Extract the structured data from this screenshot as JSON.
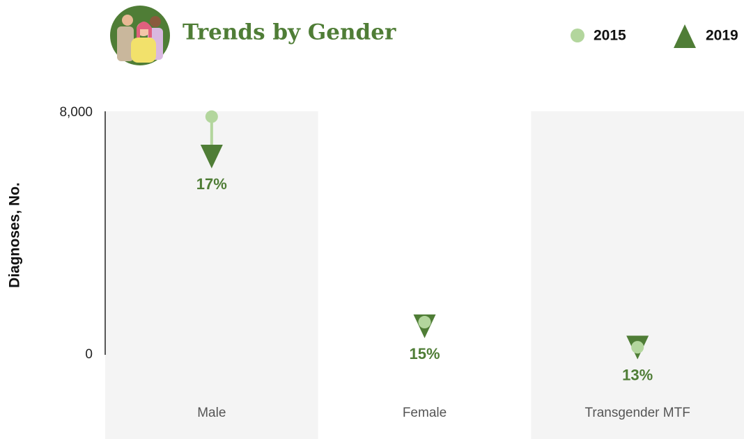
{
  "chart_data": {
    "type": "dot-arrow",
    "title": "Trends by Gender",
    "ylabel": "Diagnoses, No.",
    "categories": [
      "Male",
      "Female",
      "Transgender MTF"
    ],
    "series": [
      {
        "name": "2015",
        "color": "#b3d69d",
        "values": [
          7870,
          1080,
          250
        ]
      },
      {
        "name": "2019",
        "color": "#4f7d36",
        "values": [
          6530,
          920,
          218
        ]
      }
    ],
    "annotations": [
      "17%",
      "15%",
      "13%"
    ],
    "ylim": [
      0,
      8000
    ],
    "yticks": [
      0,
      {
        "value": 8000,
        "label": "8,000"
      }
    ]
  }
}
